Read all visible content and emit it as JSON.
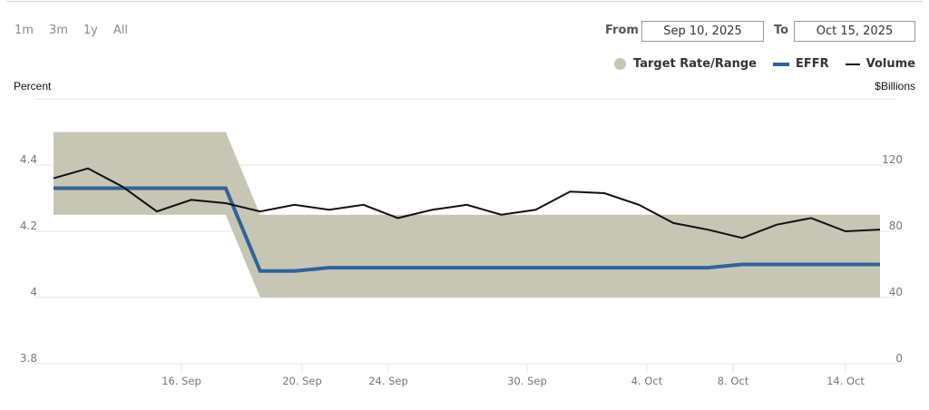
{
  "range_buttons": [
    "1m",
    "3m",
    "1y",
    "All"
  ],
  "date_range": {
    "from_label": "From",
    "from_value": "Sep 10, 2025",
    "to_label": "To",
    "to_value": "Oct 15, 2025"
  },
  "legend": {
    "target": "Target Rate/Range",
    "effr": "EFFR",
    "volume": "Volume"
  },
  "axes": {
    "left_title": "Percent",
    "right_title": "$Billions"
  },
  "colors": {
    "target_band": "#c7c6b5",
    "effr": "#2f6498",
    "volume": "#111111",
    "grid": "#e3e6ee"
  },
  "chart_data": {
    "type": "line",
    "title": "",
    "xlabel": "",
    "ylabel": "Percent",
    "ylabel_right": "$Billions",
    "ylim": [
      3.8,
      4.6
    ],
    "ylim_right": [
      0,
      160
    ],
    "yticks": [
      "3.8",
      "4",
      "4.2",
      "4.4"
    ],
    "yticks_right": [
      "0",
      "40",
      "80",
      "120"
    ],
    "x_tick_labels": [
      "16. Sep",
      "20. Sep",
      "24. Sep",
      "30. Sep",
      "4. Oct",
      "8. Oct",
      "14. Oct"
    ],
    "x": [
      "Sep 10",
      "Sep 11",
      "Sep 12",
      "Sep 15",
      "Sep 16",
      "Sep 17",
      "Sep 18",
      "Sep 19",
      "Sep 22",
      "Sep 23",
      "Sep 24",
      "Sep 25",
      "Sep 26",
      "Sep 29",
      "Sep 30",
      "Oct 1",
      "Oct 2",
      "Oct 3",
      "Oct 6",
      "Oct 7",
      "Oct 8",
      "Oct 9",
      "Oct 10",
      "Oct 14",
      "Oct 15"
    ],
    "series": [
      {
        "name": "Target Rate/Range",
        "type": "area-range",
        "low": [
          4.25,
          4.25,
          4.25,
          4.25,
          4.25,
          4.25,
          4.0,
          4.0,
          4.0,
          4.0,
          4.0,
          4.0,
          4.0,
          4.0,
          4.0,
          4.0,
          4.0,
          4.0,
          4.0,
          4.0,
          4.0,
          4.0,
          4.0,
          4.0,
          4.0
        ],
        "high": [
          4.5,
          4.5,
          4.5,
          4.5,
          4.5,
          4.5,
          4.25,
          4.25,
          4.25,
          4.25,
          4.25,
          4.25,
          4.25,
          4.25,
          4.25,
          4.25,
          4.25,
          4.25,
          4.25,
          4.25,
          4.25,
          4.25,
          4.25,
          4.25,
          4.25
        ]
      },
      {
        "name": "EFFR",
        "axis": "left",
        "values": [
          4.33,
          4.33,
          4.33,
          4.33,
          4.33,
          4.33,
          4.08,
          4.08,
          4.09,
          4.09,
          4.09,
          4.09,
          4.09,
          4.09,
          4.09,
          4.09,
          4.09,
          4.09,
          4.09,
          4.09,
          4.1,
          4.1,
          4.1,
          4.1,
          4.1
        ]
      },
      {
        "name": "Volume",
        "axis": "right",
        "values": [
          112,
          118,
          107,
          92,
          99,
          97,
          92,
          96,
          93,
          96,
          88,
          93,
          96,
          90,
          93,
          104,
          103,
          96,
          85,
          81,
          76,
          84,
          88,
          80,
          81
        ]
      }
    ],
    "grid": true,
    "legend_position": "top-right"
  }
}
